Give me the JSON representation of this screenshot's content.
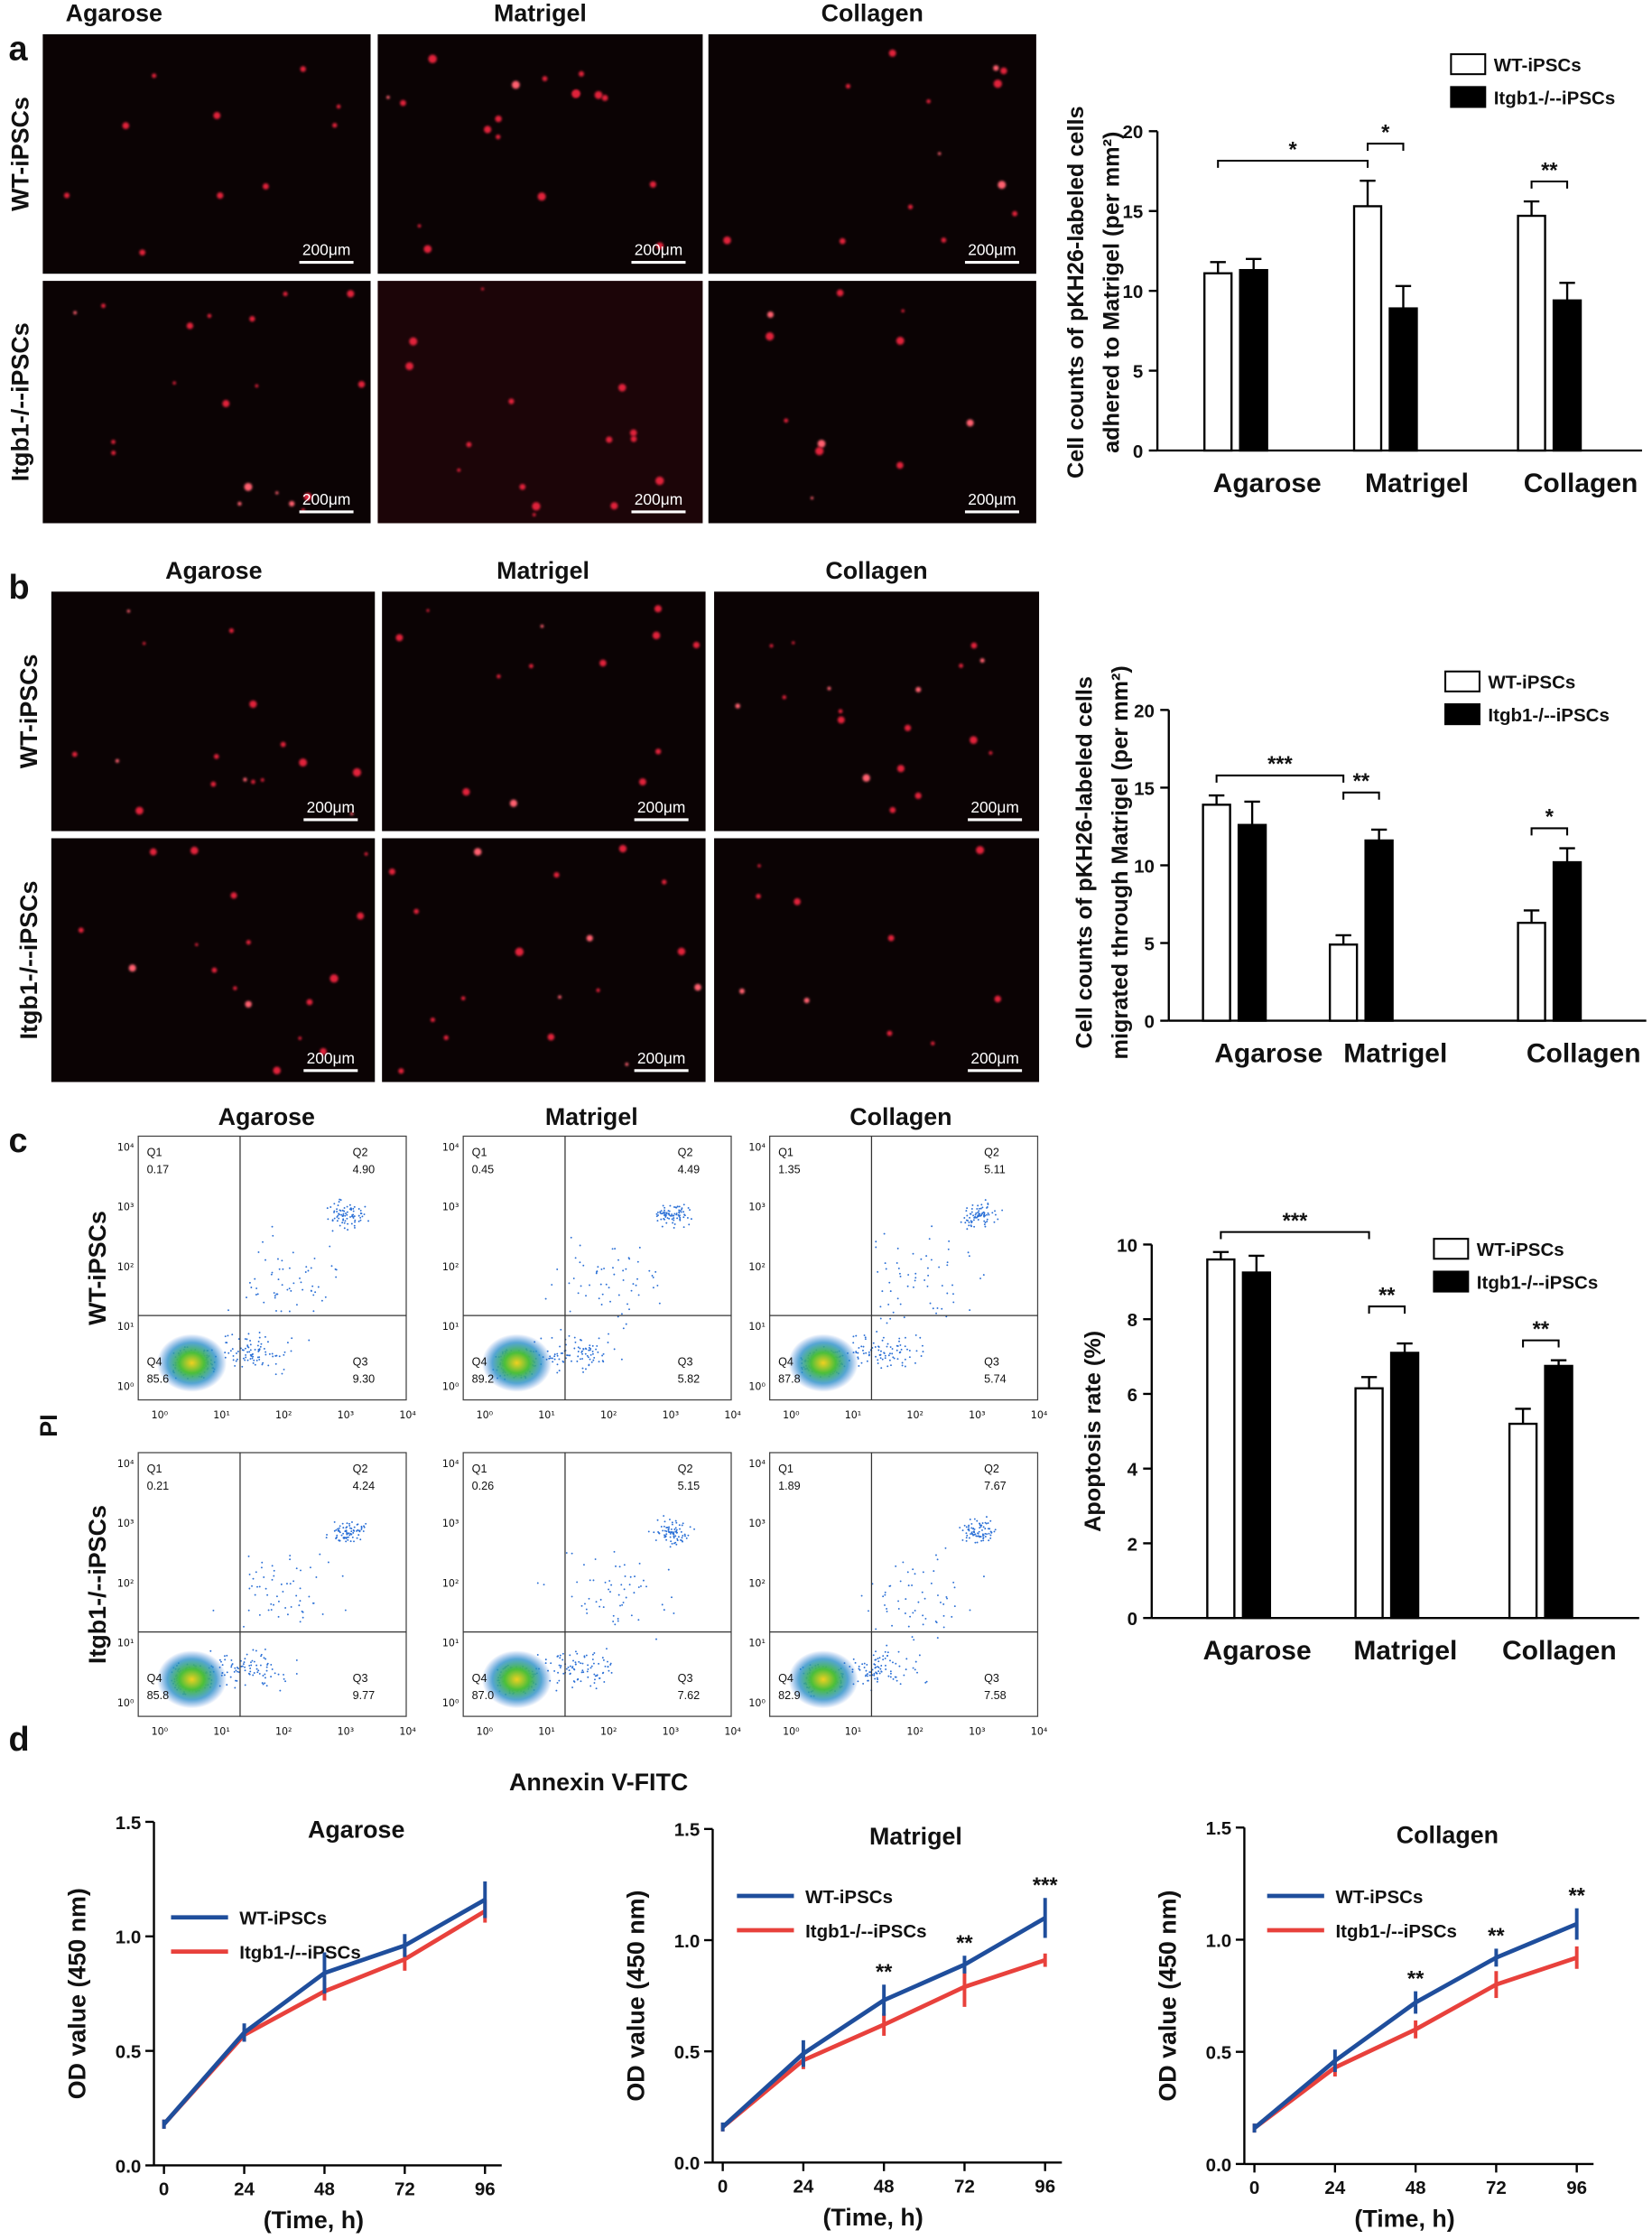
{
  "panel_labels": [
    "a",
    "b",
    "c",
    "d"
  ],
  "micrographs": [
    {
      "columns": [
        "Agarose",
        "Matrigel",
        "Collagen"
      ],
      "rows": [
        "WT-iPSCs",
        "Itgb1-/--iPSCs"
      ],
      "scale_bar": "200μm"
    },
    {
      "columns": [
        "Agarose",
        "Matrigel",
        "Collagen"
      ],
      "rows": [
        "WT-iPSCs",
        "Itgb1-/--iPSCs"
      ],
      "scale_bar": "200μm"
    }
  ],
  "flow_cytometry": {
    "columns": [
      "Agarose",
      "Matrigel",
      "Collagen"
    ],
    "rows": [
      "WT-iPSCs",
      "Itgb1-/--iPSCs"
    ],
    "y_label": "PI",
    "x_label": "Annexin V-FITC",
    "ticks": [
      "10⁰",
      "10¹",
      "10²",
      "10³",
      "10⁴"
    ],
    "plots": [
      [
        {
          "quadrants": [
            {
              "name": "Q1",
              "value": "0.17"
            },
            {
              "name": "Q2",
              "value": "4.90"
            },
            {
              "name": "Q3",
              "value": "9.30"
            },
            {
              "name": "Q4",
              "value": "85.6"
            }
          ]
        },
        {
          "quadrants": [
            {
              "name": "Q1",
              "value": "0.45"
            },
            {
              "name": "Q2",
              "value": "4.49"
            },
            {
              "name": "Q3",
              "value": "5.82"
            },
            {
              "name": "Q4",
              "value": "89.2"
            }
          ]
        },
        {
          "quadrants": [
            {
              "name": "Q1",
              "value": "1.35"
            },
            {
              "name": "Q2",
              "value": "5.11"
            },
            {
              "name": "Q3",
              "value": "5.74"
            },
            {
              "name": "Q4",
              "value": "87.8"
            }
          ]
        }
      ],
      [
        {
          "quadrants": [
            {
              "name": "Q1",
              "value": "0.21"
            },
            {
              "name": "Q2",
              "value": "4.24"
            },
            {
              "name": "Q3",
              "value": "9.77"
            },
            {
              "name": "Q4",
              "value": "85.8"
            }
          ]
        },
        {
          "quadrants": [
            {
              "name": "Q1",
              "value": "0.26"
            },
            {
              "name": "Q2",
              "value": "5.15"
            },
            {
              "name": "Q3",
              "value": "7.62"
            },
            {
              "name": "Q4",
              "value": "87.0"
            }
          ]
        },
        {
          "quadrants": [
            {
              "name": "Q1",
              "value": "1.89"
            },
            {
              "name": "Q2",
              "value": "7.67"
            },
            {
              "name": "Q3",
              "value": "7.58"
            },
            {
              "name": "Q4",
              "value": "82.9"
            }
          ]
        }
      ]
    ]
  },
  "chart_data": [
    {
      "type": "bar",
      "ylabel": [
        "Cell counts of pKH26-labeled cells",
        "adhered to Matrigel (per mm²)"
      ],
      "categories": [
        "Agarose",
        "Matrigel",
        "Collagen"
      ],
      "series": [
        {
          "name": "WT-iPSCs",
          "color": "#ffffff",
          "values": [
            11.1,
            15.3,
            14.7
          ],
          "errors": [
            0.7,
            1.6,
            0.9
          ]
        },
        {
          "name": "Itgb1-/--iPSCs",
          "color": "#000000",
          "values": [
            11.3,
            8.9,
            9.4
          ],
          "errors": [
            0.7,
            1.4,
            1.1
          ]
        }
      ],
      "ylim": [
        0,
        20
      ],
      "yticks": [
        0,
        5,
        10,
        15,
        20
      ],
      "significance": [
        {
          "text": "*",
          "from": [
            "Agarose",
            "WT-iPSCs"
          ],
          "to": [
            "Matrigel",
            "WT-iPSCs"
          ]
        },
        {
          "text": "*",
          "from": [
            "Matrigel",
            "WT-iPSCs"
          ],
          "to": [
            "Matrigel",
            "Itgb1-/--iPSCs"
          ]
        },
        {
          "text": "**",
          "from": [
            "Collagen",
            "WT-iPSCs"
          ],
          "to": [
            "Collagen",
            "Itgb1-/--iPSCs"
          ]
        }
      ]
    },
    {
      "type": "bar",
      "ylabel": [
        "Cell counts of pKH26-labeled cells",
        "migrated through Matrigel (per mm²)"
      ],
      "categories": [
        "Agarose",
        "Matrigel",
        "Collagen"
      ],
      "series": [
        {
          "name": "WT-iPSCs",
          "color": "#ffffff",
          "values": [
            13.9,
            4.9,
            6.3
          ],
          "errors": [
            0.6,
            0.6,
            0.8
          ]
        },
        {
          "name": "Itgb1-/--iPSCs",
          "color": "#000000",
          "values": [
            12.6,
            11.6,
            10.2
          ],
          "errors": [
            1.5,
            0.7,
            0.9
          ]
        }
      ],
      "ylim": [
        0,
        20
      ],
      "yticks": [
        0,
        5,
        10,
        15,
        20
      ],
      "significance": [
        {
          "text": "***",
          "from": [
            "Agarose",
            "WT-iPSCs"
          ],
          "to": [
            "Matrigel",
            "WT-iPSCs"
          ]
        },
        {
          "text": "**",
          "from": [
            "Matrigel",
            "WT-iPSCs"
          ],
          "to": [
            "Matrigel",
            "Itgb1-/--iPSCs"
          ]
        },
        {
          "text": "*",
          "from": [
            "Collagen",
            "WT-iPSCs"
          ],
          "to": [
            "Collagen",
            "Itgb1-/--iPSCs"
          ]
        }
      ]
    },
    {
      "type": "bar",
      "ylabel": [
        "Apoptosis rate (%)"
      ],
      "categories": [
        "Agarose",
        "Matrigel",
        "Collagen"
      ],
      "series": [
        {
          "name": "WT-iPSCs",
          "color": "#ffffff",
          "values": [
            9.6,
            6.15,
            5.2
          ],
          "errors": [
            0.2,
            0.3,
            0.4
          ]
        },
        {
          "name": "Itgb1-/--iPSCs",
          "color": "#000000",
          "values": [
            9.25,
            7.1,
            6.75
          ],
          "errors": [
            0.45,
            0.25,
            0.15
          ]
        }
      ],
      "ylim": [
        0,
        10
      ],
      "yticks": [
        0,
        2,
        4,
        6,
        8,
        10
      ],
      "significance": [
        {
          "text": "***",
          "from": [
            "Agarose",
            "WT-iPSCs"
          ],
          "to": [
            "Matrigel",
            "WT-iPSCs"
          ]
        },
        {
          "text": "**",
          "from": [
            "Matrigel",
            "WT-iPSCs"
          ],
          "to": [
            "Matrigel",
            "Itgb1-/--iPSCs"
          ]
        },
        {
          "text": "**",
          "from": [
            "Collagen",
            "WT-iPSCs"
          ],
          "to": [
            "Collagen",
            "Itgb1-/--iPSCs"
          ]
        }
      ]
    },
    {
      "type": "line",
      "title": "Agarose",
      "xlabel": "(Time, h)",
      "ylabel": "OD value (450 nm)",
      "x": [
        0,
        24,
        48,
        72,
        96
      ],
      "series": [
        {
          "name": "WT-iPSCs",
          "color": "#1f4e9c",
          "values": [
            0.18,
            0.58,
            0.84,
            0.96,
            1.16
          ],
          "errors": [
            0.02,
            0.04,
            0.09,
            0.05,
            0.08
          ]
        },
        {
          "name": "Itgb1-/--iPSCs",
          "color": "#e8413c",
          "values": [
            0.18,
            0.57,
            0.76,
            0.9,
            1.11
          ],
          "errors": [
            0.02,
            0.03,
            0.04,
            0.05,
            0.05
          ]
        }
      ],
      "xlim": [
        -3,
        101
      ],
      "xticks": [
        0,
        24,
        48,
        72,
        96
      ],
      "ylim": [
        0,
        1.5
      ],
      "yticks": [
        {
          "value": 0,
          "label": "0.0"
        },
        0.5,
        {
          "value": 1,
          "label": "1.0"
        },
        1.5
      ]
    },
    {
      "type": "line",
      "title": "Matrigel",
      "xlabel": "(Time, h)",
      "ylabel": "OD value (450 nm)",
      "x": [
        0,
        24,
        48,
        72,
        96
      ],
      "series": [
        {
          "name": "WT-iPSCs",
          "color": "#1f4e9c",
          "values": [
            0.16,
            0.49,
            0.73,
            0.89,
            1.1
          ],
          "errors": [
            0.02,
            0.06,
            0.07,
            0.04,
            0.09
          ]
        },
        {
          "name": "Itgb1-/--iPSCs",
          "color": "#e8413c",
          "values": [
            0.16,
            0.46,
            0.62,
            0.79,
            0.91
          ],
          "errors": [
            0.02,
            0.04,
            0.05,
            0.09,
            0.03
          ]
        }
      ],
      "xlim": [
        -3,
        101
      ],
      "xticks": [
        0,
        24,
        48,
        72,
        96
      ],
      "ylim": [
        0,
        1.5
      ],
      "yticks": [
        {
          "value": 0,
          "label": "0.0"
        },
        0.5,
        {
          "value": 1,
          "label": "1.0"
        },
        1.5
      ],
      "annotations": [
        {
          "text": "**",
          "x": 48
        },
        {
          "text": "**",
          "x": 72
        },
        {
          "text": "***",
          "x": 96
        }
      ]
    },
    {
      "type": "line",
      "title": "Collagen",
      "xlabel": "(Time, h)",
      "ylabel": "OD value (450 nm)",
      "x": [
        0,
        24,
        48,
        72,
        96
      ],
      "series": [
        {
          "name": "WT-iPSCs",
          "color": "#1f4e9c",
          "values": [
            0.16,
            0.46,
            0.72,
            0.92,
            1.07
          ],
          "errors": [
            0.02,
            0.05,
            0.05,
            0.04,
            0.07
          ]
        },
        {
          "name": "Itgb1-/--iPSCs",
          "color": "#e8413c",
          "values": [
            0.16,
            0.43,
            0.6,
            0.8,
            0.92
          ],
          "errors": [
            0.02,
            0.04,
            0.04,
            0.06,
            0.05
          ]
        }
      ],
      "xlim": [
        -3,
        101
      ],
      "xticks": [
        0,
        24,
        48,
        72,
        96
      ],
      "ylim": [
        0,
        1.5
      ],
      "yticks": [
        {
          "value": 0,
          "label": "0.0"
        },
        0.5,
        {
          "value": 1,
          "label": "1.0"
        },
        1.5
      ],
      "annotations": [
        {
          "text": "**",
          "x": 48
        },
        {
          "text": "**",
          "x": 72
        },
        {
          "text": "**",
          "x": 96
        }
      ]
    }
  ]
}
